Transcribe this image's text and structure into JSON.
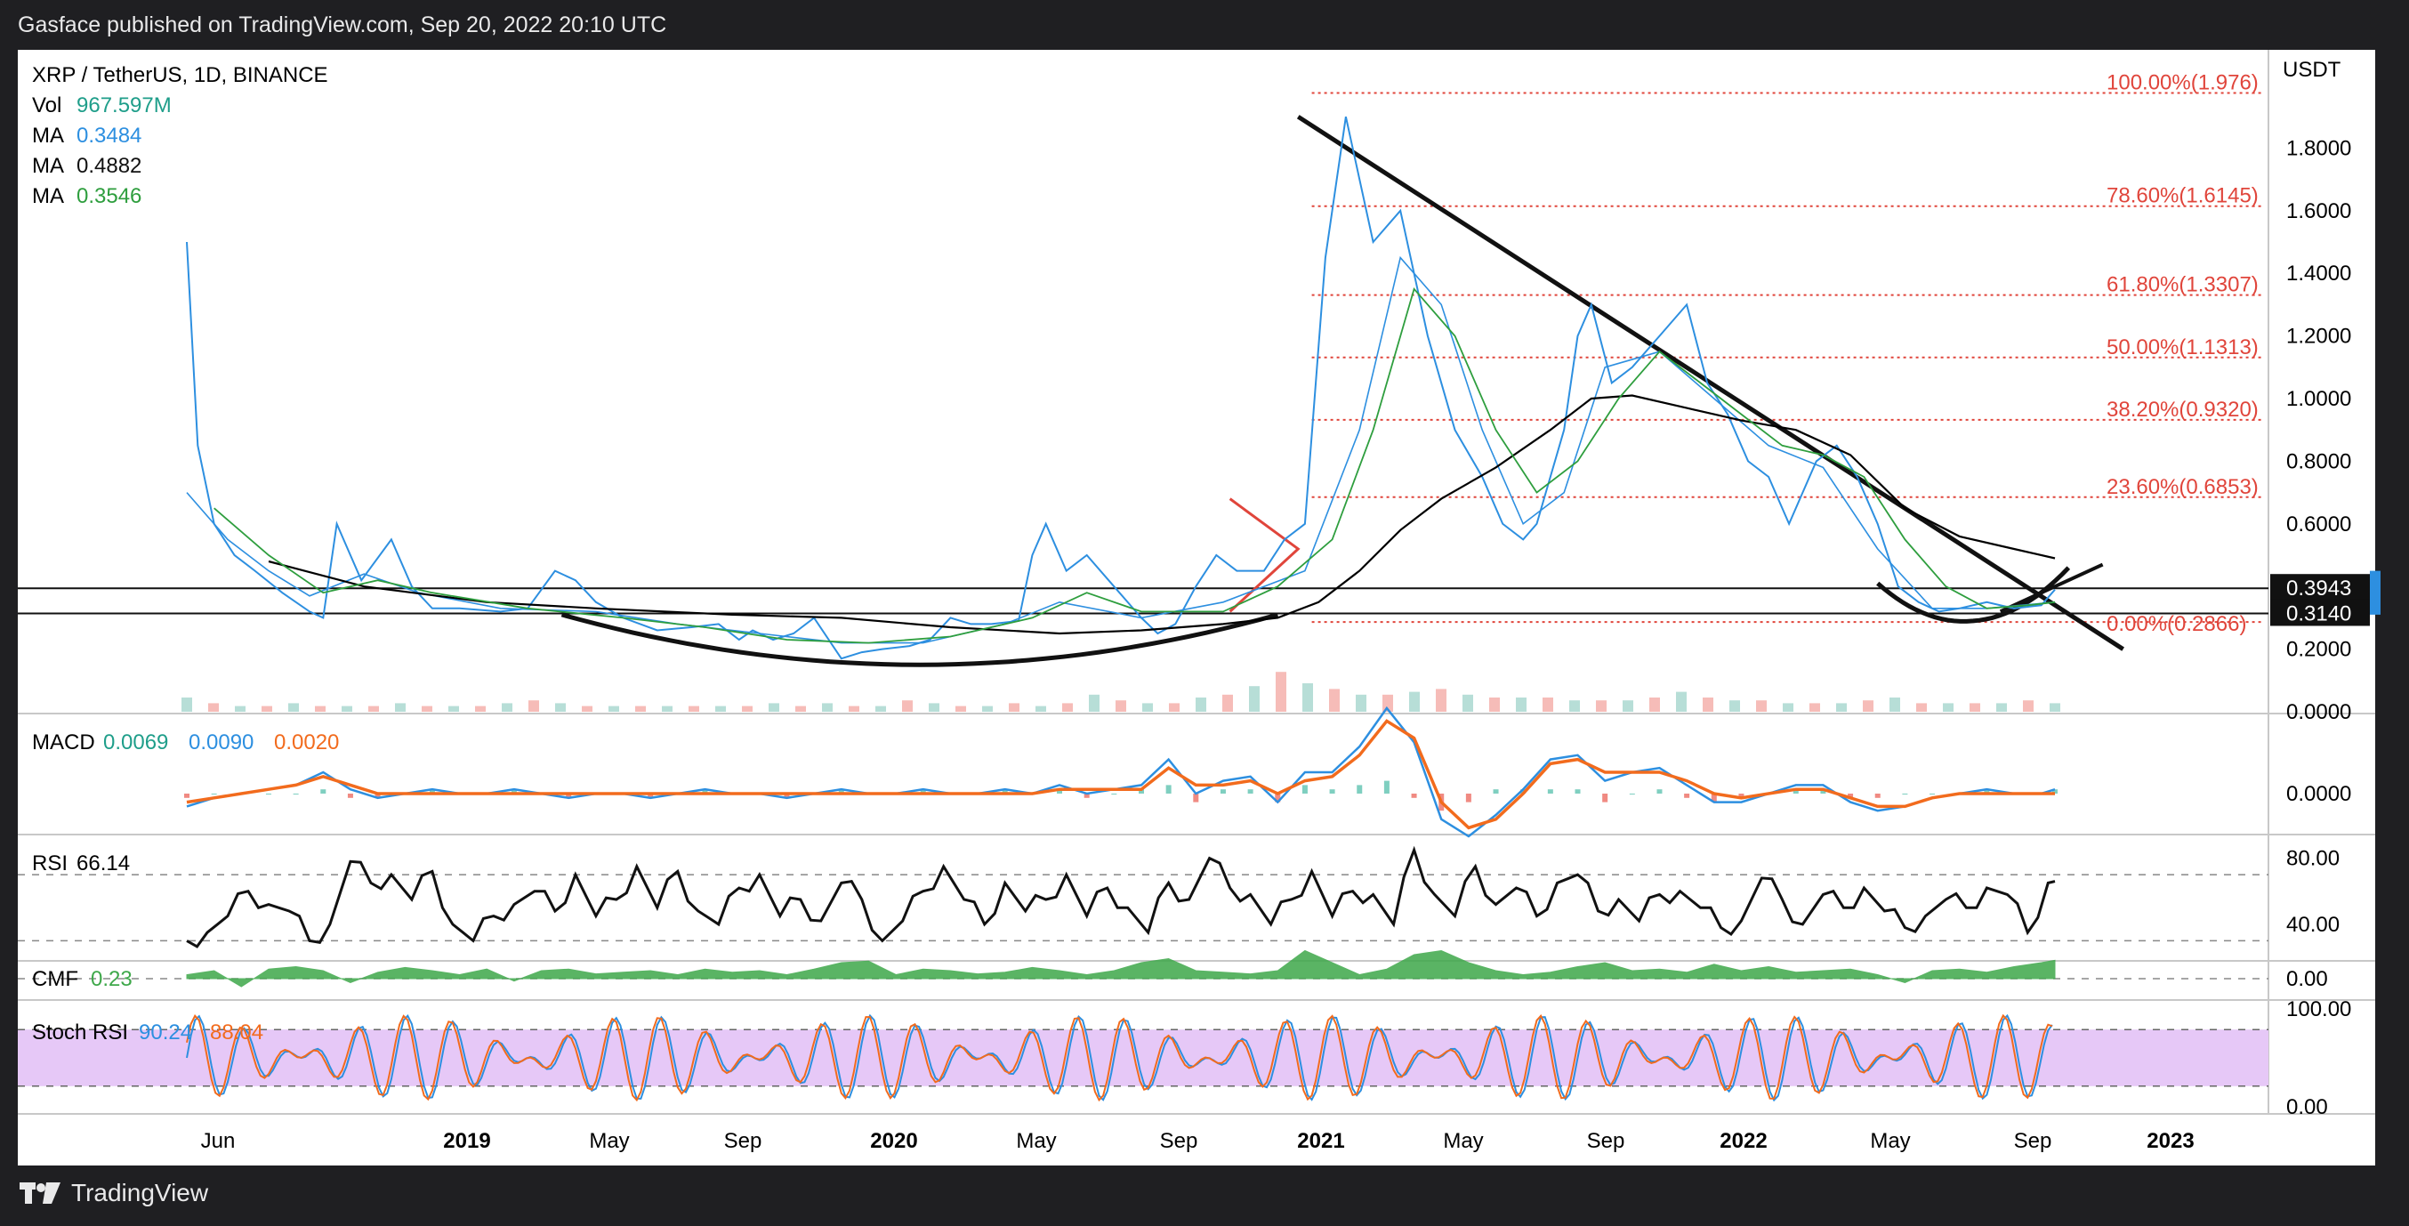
{
  "header": {
    "published": "Gasface published on TradingView.com, Sep 20, 2022 20:10 UTC"
  },
  "footer": {
    "brand": "TradingView"
  },
  "colors": {
    "price": "#2d8fe0",
    "ma_short": "#2d8fe0",
    "ma_long": "#000000",
    "ma_mid": "#2e9e3e",
    "fib": "#e0453b",
    "macd": "#2d8fe0",
    "signal": "#f26b1d",
    "cmf": "#3ea84a",
    "stoch_bg": "#e6c8f7",
    "vol_up": "#9fd3c9",
    "vol_down": "#f3a6a0"
  },
  "chart_data": [
    {
      "type": "line",
      "title": "XRP / TetherUS, 1D, BINANCE",
      "legend": [
        {
          "label": "Vol",
          "value": "967.597M"
        },
        {
          "label": "MA",
          "value": "0.3484"
        },
        {
          "label": "MA",
          "value": "0.4882"
        },
        {
          "label": "MA",
          "value": "0.3546"
        }
      ],
      "currency": "USDT",
      "x_labels": [
        "Jun",
        "2019",
        "May",
        "Sep",
        "2020",
        "May",
        "Sep",
        "2021",
        "May",
        "Sep",
        "2022",
        "May",
        "Sep",
        "2023"
      ],
      "y_ticks": [
        "1.8000",
        "1.6000",
        "1.4000",
        "1.2000",
        "1.0000",
        "0.8000",
        "0.6000",
        "0.2000",
        "0.0000"
      ],
      "ylim": [
        0,
        2.0
      ],
      "price_tags": [
        "0.3943",
        "0.3140"
      ],
      "horizontal_levels": [
        0.3943,
        0.314
      ],
      "fib_levels": [
        {
          "label": "100.00%(1.976)",
          "value": 1.976
        },
        {
          "label": "78.60%(1.6145)",
          "value": 1.6145
        },
        {
          "label": "61.80%(1.3307)",
          "value": 1.3307
        },
        {
          "label": "50.00%(1.1313)",
          "value": 1.1313
        },
        {
          "label": "38.20%(0.9320)",
          "value": 0.932
        },
        {
          "label": "23.60%(0.6853)",
          "value": 0.6853
        },
        {
          "label": "0.00%(0.2866)",
          "value": 0.2866
        }
      ],
      "series": [
        {
          "name": "XRP",
          "x": [
            0,
            8,
            20,
            35,
            50,
            70,
            90,
            100,
            110,
            120,
            128,
            150,
            165,
            180,
            200,
            230,
            250,
            270,
            285,
            300,
            320,
            345,
            370,
            390,
            405,
            415,
            430,
            445,
            460,
            480,
            495,
            510,
            530,
            545,
            560,
            575,
            590,
            610,
            620,
            630,
            645,
            660,
            680,
            700,
            712,
            725,
            740,
            755,
            770,
            790,
            805,
            820,
            835,
            850,
            870,
            890,
            910,
            930,
            950,
            965,
            980,
            990,
            1000,
            1010,
            1020,
            1030,
            1045,
            1060,
            1080,
            1100,
            1115,
            1130,
            1145,
            1160,
            1175,
            1185,
            1195,
            1210,
            1225,
            1240,
            1255,
            1270,
            1285,
            1300,
            1320,
            1340,
            1360,
            1370
          ],
          "y": [
            1.5,
            0.85,
            0.6,
            0.5,
            0.45,
            0.38,
            0.32,
            0.3,
            0.6,
            0.5,
            0.42,
            0.55,
            0.4,
            0.33,
            0.33,
            0.32,
            0.33,
            0.45,
            0.42,
            0.35,
            0.3,
            0.26,
            0.27,
            0.28,
            0.23,
            0.26,
            0.23,
            0.25,
            0.3,
            0.17,
            0.19,
            0.2,
            0.21,
            0.23,
            0.3,
            0.28,
            0.28,
            0.29,
            0.5,
            0.6,
            0.45,
            0.5,
            0.4,
            0.3,
            0.25,
            0.28,
            0.4,
            0.5,
            0.45,
            0.45,
            0.55,
            0.6,
            1.45,
            1.9,
            1.5,
            1.6,
            1.2,
            0.9,
            0.75,
            0.6,
            0.55,
            0.6,
            0.75,
            0.9,
            1.2,
            1.3,
            1.05,
            1.1,
            1.2,
            1.3,
            1.05,
            0.95,
            0.8,
            0.75,
            0.6,
            0.7,
            0.8,
            0.85,
            0.75,
            0.6,
            0.4,
            0.35,
            0.32,
            0.33,
            0.35,
            0.33,
            0.34,
            0.39
          ]
        },
        {
          "name": "MA 0.3484",
          "x": [
            0,
            30,
            60,
            90,
            130,
            170,
            230,
            300,
            360,
            420,
            480,
            540,
            600,
            640,
            700,
            760,
            820,
            860,
            890,
            920,
            950,
            980,
            1010,
            1040,
            1080,
            1120,
            1160,
            1200,
            1240,
            1280,
            1320,
            1370
          ],
          "y": [
            0.7,
            0.55,
            0.45,
            0.37,
            0.44,
            0.38,
            0.33,
            0.32,
            0.28,
            0.25,
            0.22,
            0.22,
            0.28,
            0.35,
            0.3,
            0.35,
            0.45,
            0.9,
            1.45,
            1.3,
            0.9,
            0.6,
            0.7,
            1.1,
            1.15,
            1.0,
            0.85,
            0.78,
            0.52,
            0.33,
            0.33,
            0.35
          ]
        },
        {
          "name": "MA 0.4882",
          "x": [
            60,
            130,
            220,
            300,
            400,
            480,
            560,
            640,
            700,
            760,
            800,
            830,
            860,
            890,
            920,
            960,
            1000,
            1030,
            1060,
            1100,
            1140,
            1180,
            1220,
            1260,
            1300,
            1340,
            1370
          ],
          "y": [
            0.48,
            0.4,
            0.35,
            0.33,
            0.31,
            0.3,
            0.27,
            0.25,
            0.26,
            0.28,
            0.3,
            0.35,
            0.45,
            0.58,
            0.68,
            0.78,
            0.9,
            1.0,
            1.01,
            0.97,
            0.93,
            0.9,
            0.82,
            0.65,
            0.56,
            0.52,
            0.49
          ]
        },
        {
          "name": "MA 0.3546",
          "x": [
            20,
            60,
            100,
            140,
            180,
            250,
            320,
            380,
            440,
            500,
            560,
            620,
            660,
            700,
            760,
            800,
            840,
            870,
            900,
            930,
            960,
            990,
            1020,
            1050,
            1080,
            1110,
            1140,
            1170,
            1200,
            1230,
            1260,
            1290,
            1320,
            1350,
            1370
          ],
          "y": [
            0.65,
            0.5,
            0.38,
            0.42,
            0.38,
            0.33,
            0.3,
            0.27,
            0.23,
            0.22,
            0.24,
            0.3,
            0.38,
            0.32,
            0.32,
            0.4,
            0.55,
            0.9,
            1.35,
            1.2,
            0.9,
            0.7,
            0.8,
            1.0,
            1.15,
            1.05,
            0.95,
            0.85,
            0.82,
            0.75,
            0.55,
            0.4,
            0.33,
            0.34,
            0.35
          ]
        }
      ],
      "volume": [
        5,
        3,
        2,
        2,
        3,
        2,
        2,
        2,
        3,
        2,
        2,
        2,
        3,
        4,
        3,
        2,
        2,
        2,
        2,
        2,
        2,
        2,
        3,
        2,
        3,
        2,
        2,
        4,
        3,
        2,
        2,
        3,
        2,
        3,
        6,
        4,
        3,
        3,
        5,
        6,
        9,
        14,
        10,
        8,
        6,
        6,
        7,
        8,
        6,
        5,
        5,
        5,
        4,
        4,
        4,
        5,
        7,
        5,
        4,
        4,
        3,
        3,
        3,
        4,
        5,
        3,
        3,
        3,
        3,
        4,
        3
      ]
    },
    {
      "type": "line",
      "title": "MACD",
      "legend": [
        {
          "value": "0.0069"
        },
        {
          "value": "0.0090"
        },
        {
          "value": "0.0020"
        }
      ],
      "y_ticks": [
        "0.0000"
      ],
      "x": [
        0,
        20,
        40,
        60,
        80,
        100,
        120,
        140,
        160,
        180,
        200,
        220,
        240,
        260,
        280,
        300,
        320,
        340,
        360,
        380,
        400,
        420,
        440,
        460,
        480,
        500,
        520,
        540,
        560,
        580,
        600,
        620,
        640,
        660,
        680,
        700,
        720,
        740,
        760,
        780,
        800,
        820,
        840,
        860,
        880,
        900,
        920,
        940,
        960,
        980,
        1000,
        1020,
        1040,
        1060,
        1080,
        1100,
        1120,
        1140,
        1160,
        1180,
        1200,
        1220,
        1240,
        1260,
        1280,
        1300,
        1320,
        1340,
        1360,
        1370
      ],
      "series": [
        {
          "name": "MACD",
          "values": [
            -0.03,
            -0.01,
            0.0,
            0.01,
            0.02,
            0.05,
            0.01,
            -0.01,
            0.0,
            0.01,
            0.0,
            0.0,
            0.01,
            0.0,
            -0.01,
            0.0,
            0.0,
            -0.01,
            0.0,
            0.01,
            0.0,
            0.0,
            -0.01,
            0.0,
            0.01,
            0.0,
            0.0,
            0.01,
            0.0,
            0.0,
            0.01,
            0.0,
            0.02,
            0.0,
            0.01,
            0.02,
            0.08,
            0.0,
            0.03,
            0.04,
            -0.02,
            0.05,
            0.05,
            0.11,
            0.2,
            0.12,
            -0.06,
            -0.1,
            -0.05,
            0.01,
            0.08,
            0.09,
            0.03,
            0.05,
            0.06,
            0.02,
            -0.02,
            -0.02,
            0.0,
            0.02,
            0.02,
            -0.02,
            -0.04,
            -0.03,
            -0.01,
            0.0,
            0.01,
            0.0,
            0.0,
            0.01
          ]
        },
        {
          "name": "Signal",
          "values": [
            -0.02,
            -0.01,
            0.0,
            0.01,
            0.02,
            0.04,
            0.02,
            0.0,
            0.0,
            0.0,
            0.0,
            0.0,
            0.0,
            0.0,
            0.0,
            0.0,
            0.0,
            0.0,
            0.0,
            0.0,
            0.0,
            0.0,
            0.0,
            0.0,
            0.0,
            0.0,
            0.0,
            0.0,
            0.0,
            0.0,
            0.0,
            0.0,
            0.01,
            0.01,
            0.01,
            0.01,
            0.06,
            0.02,
            0.02,
            0.03,
            0.0,
            0.03,
            0.04,
            0.09,
            0.17,
            0.13,
            -0.02,
            -0.08,
            -0.06,
            0.0,
            0.07,
            0.08,
            0.05,
            0.05,
            0.05,
            0.03,
            0.0,
            -0.01,
            0.0,
            0.01,
            0.01,
            -0.01,
            -0.03,
            -0.03,
            -0.01,
            0.0,
            0.0,
            0.0,
            0.0,
            0.0
          ]
        }
      ]
    },
    {
      "type": "line",
      "title": "RSI",
      "legend": [
        {
          "value": "66.14"
        }
      ],
      "y_ticks": [
        "80.00",
        "40.00"
      ],
      "ylim": [
        20,
        90
      ],
      "levels": [
        70,
        30
      ],
      "x": [
        0,
        15,
        30,
        45,
        60,
        75,
        90,
        105,
        120,
        135,
        150,
        165,
        180,
        195,
        210,
        225,
        240,
        255,
        270,
        285,
        300,
        315,
        330,
        345,
        360,
        375,
        390,
        405,
        420,
        435,
        450,
        465,
        480,
        495,
        510,
        525,
        540,
        555,
        570,
        585,
        600,
        615,
        630,
        645,
        660,
        675,
        690,
        705,
        720,
        735,
        750,
        765,
        780,
        795,
        810,
        825,
        840,
        855,
        870,
        885,
        900,
        915,
        930,
        945,
        960,
        975,
        990,
        1005,
        1020,
        1035,
        1050,
        1065,
        1080,
        1095,
        1110,
        1125,
        1140,
        1155,
        1170,
        1185,
        1200,
        1215,
        1230,
        1245,
        1260,
        1275,
        1290,
        1305,
        1320,
        1335,
        1350,
        1365,
        1370
      ],
      "series": [
        {
          "name": "RSI",
          "values": [
            30,
            35,
            45,
            60,
            52,
            48,
            30,
            40,
            78,
            65,
            70,
            55,
            72,
            40,
            30,
            45,
            52,
            60,
            48,
            70,
            45,
            55,
            75,
            50,
            72,
            48,
            40,
            62,
            70,
            45,
            55,
            42,
            65,
            55,
            30,
            42,
            60,
            75,
            55,
            40,
            65,
            48,
            55,
            70,
            45,
            62,
            50,
            35,
            65,
            55,
            80,
            62,
            58,
            40,
            55,
            72,
            45,
            60,
            58,
            40,
            85,
            58,
            45,
            75,
            52,
            62,
            45,
            65,
            70,
            48,
            55,
            42,
            58,
            60,
            50,
            38,
            42,
            68,
            55,
            40,
            58,
            50,
            62,
            48,
            38,
            45,
            55,
            50,
            62,
            58,
            35,
            65,
            66
          ]
        }
      ]
    },
    {
      "type": "area",
      "title": "CMF",
      "legend": [
        {
          "value": "0.23"
        }
      ],
      "y_ticks": [
        "0.00"
      ],
      "x": [
        0,
        20,
        40,
        60,
        80,
        100,
        120,
        140,
        160,
        180,
        200,
        220,
        240,
        260,
        280,
        300,
        320,
        340,
        360,
        380,
        400,
        420,
        440,
        460,
        480,
        500,
        520,
        540,
        560,
        580,
        600,
        620,
        640,
        660,
        680,
        700,
        720,
        740,
        760,
        780,
        800,
        820,
        840,
        860,
        880,
        900,
        920,
        940,
        960,
        980,
        1000,
        1020,
        1040,
        1060,
        1080,
        1100,
        1120,
        1140,
        1160,
        1180,
        1200,
        1220,
        1240,
        1260,
        1280,
        1300,
        1320,
        1340,
        1360,
        1370
      ],
      "series": [
        {
          "name": "CMF",
          "values": [
            0.05,
            0.1,
            -0.1,
            0.12,
            0.15,
            0.1,
            -0.05,
            0.08,
            0.14,
            0.1,
            0.05,
            0.12,
            -0.03,
            0.1,
            0.12,
            0.06,
            0.08,
            0.1,
            0.05,
            0.12,
            0.08,
            0.1,
            0.05,
            0.12,
            0.2,
            0.22,
            0.05,
            0.12,
            0.1,
            0.06,
            0.08,
            0.14,
            0.1,
            0.05,
            0.1,
            0.2,
            0.25,
            0.1,
            0.08,
            0.06,
            0.1,
            0.35,
            0.2,
            0.05,
            0.12,
            0.3,
            0.35,
            0.2,
            0.1,
            0.05,
            0.08,
            0.15,
            0.2,
            0.1,
            0.12,
            0.08,
            0.18,
            0.1,
            0.15,
            0.08,
            0.1,
            0.12,
            0.05,
            -0.05,
            0.1,
            0.12,
            0.08,
            0.15,
            0.2,
            0.23
          ]
        }
      ]
    },
    {
      "type": "line",
      "title": "Stoch RSI",
      "legend": [
        {
          "value": "90.24"
        },
        {
          "value": "88.04"
        }
      ],
      "y_ticks": [
        "100.00",
        "0.00"
      ],
      "ylim": [
        0,
        100
      ],
      "band": [
        20,
        80
      ],
      "series": [
        {
          "name": "K",
          "period": 17,
          "phase": 0
        },
        {
          "name": "D",
          "period": 17,
          "phase": 2
        }
      ]
    }
  ]
}
